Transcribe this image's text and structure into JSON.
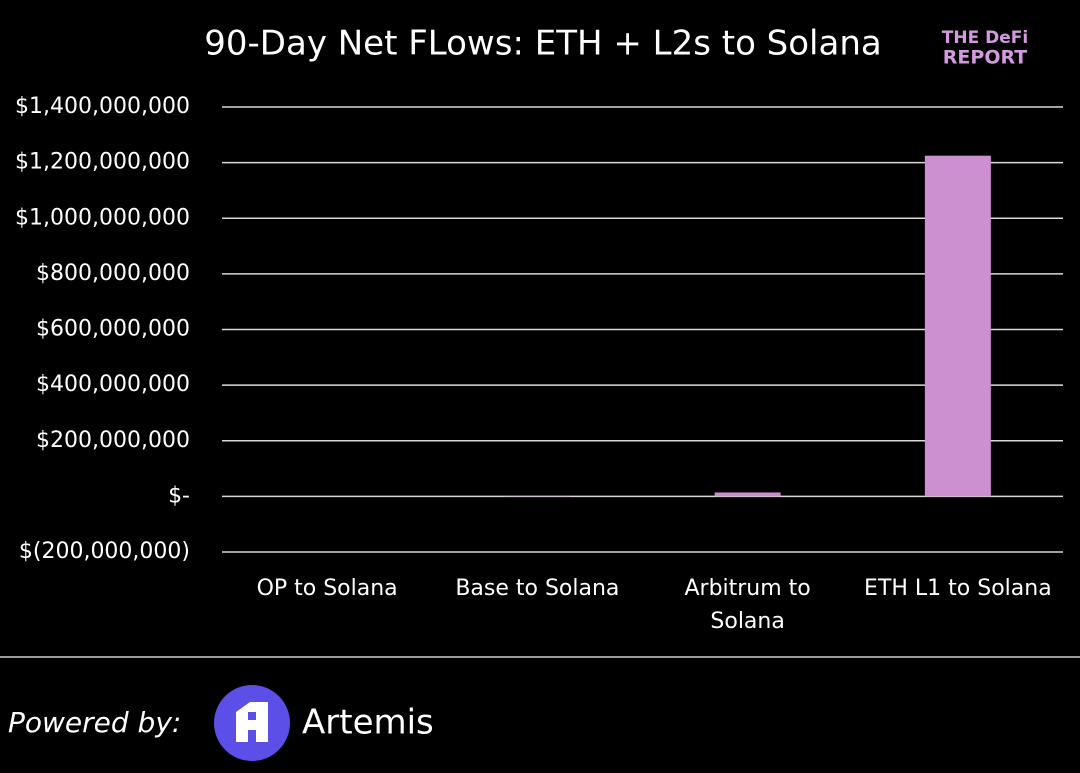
{
  "chart_data": {
    "type": "bar",
    "title": "90-Day Net FLows: ETH + L2s to Solana",
    "categories": [
      "OP to Solana",
      "Base to Solana",
      "Arbitrum to Solana",
      "ETH L1 to Solana"
    ],
    "values": [
      0,
      -1000000,
      14000000,
      1225000000
    ],
    "color": "#cc8fcf",
    "ylim": [
      -200000000,
      1400000000
    ],
    "yticks": [
      {
        "value": -200000000,
        "label": "$(200,000,000)"
      },
      {
        "value": 0,
        "label": "$-"
      },
      {
        "value": 200000000,
        "label": "$200,000,000"
      },
      {
        "value": 400000000,
        "label": "$400,000,000"
      },
      {
        "value": 600000000,
        "label": "$600,000,000"
      },
      {
        "value": 800000000,
        "label": "$800,000,000"
      },
      {
        "value": 1000000000,
        "label": "$1,000,000,000"
      },
      {
        "value": 1200000000,
        "label": "$1,200,000,000"
      },
      {
        "value": 1400000000,
        "label": "$1,400,000,000"
      }
    ],
    "grid": true
  },
  "branding": {
    "logo_top": "THE DeFi",
    "logo_bottom": "REPORT",
    "powered_by": "Powered by:",
    "provider": "Artemis"
  }
}
